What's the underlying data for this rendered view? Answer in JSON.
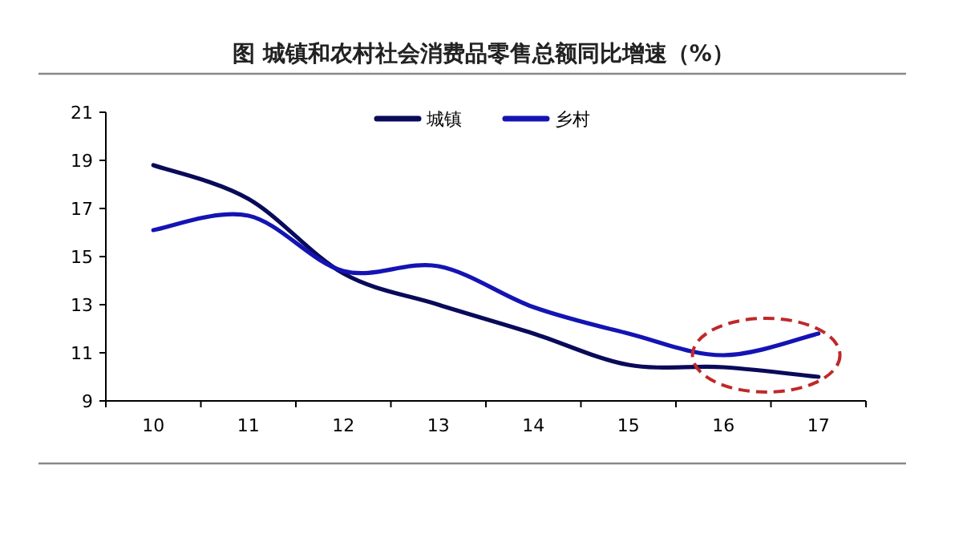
{
  "chart_data": {
    "type": "line",
    "title": "图  城镇和农村社会消费品零售总额同比增速（%）",
    "categories": [
      "10",
      "11",
      "12",
      "13",
      "14",
      "15",
      "16",
      "17"
    ],
    "series": [
      {
        "name": "城镇",
        "color": "#0a0a5a",
        "values": [
          18.8,
          17.4,
          14.3,
          13.0,
          11.8,
          10.5,
          10.4,
          10.0
        ]
      },
      {
        "name": "乡村",
        "color": "#1414b4",
        "values": [
          16.1,
          16.7,
          14.4,
          14.6,
          12.9,
          11.8,
          10.9,
          11.8
        ]
      }
    ],
    "ylim": [
      9,
      21
    ],
    "yticks": [
      9,
      11,
      13,
      15,
      17,
      19,
      21
    ],
    "grid": false,
    "legend": "top",
    "marker": "none",
    "line_style": "solid"
  }
}
